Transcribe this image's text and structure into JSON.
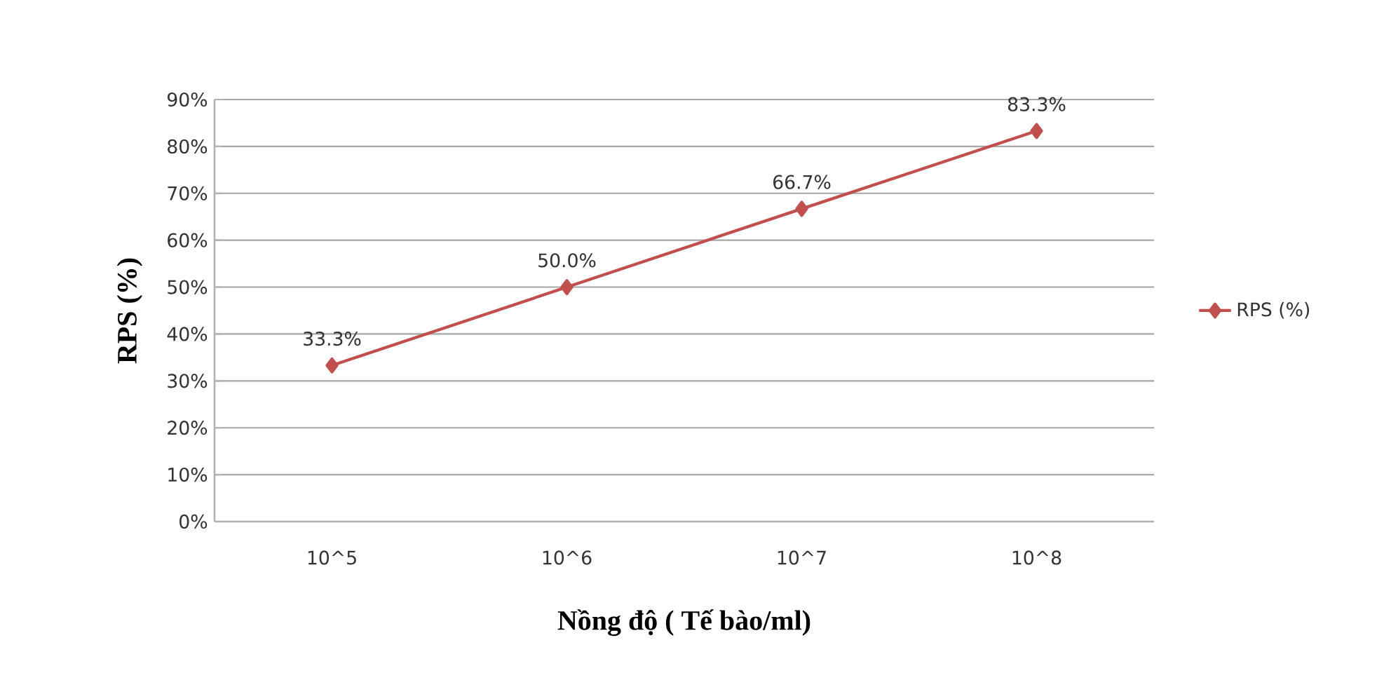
{
  "chart_data": {
    "type": "line",
    "xlabel": "Nồng độ ( Tế bào/ml)",
    "ylabel": "RPS (%)",
    "categories": [
      "10^5",
      "10^6",
      "10^7",
      "10^8"
    ],
    "series": [
      {
        "name": "RPS (%)",
        "color": "#c0504d",
        "values": [
          33.3,
          50.0,
          66.7,
          83.3
        ],
        "value_labels": [
          "33.3%",
          "50.0%",
          "66.7%",
          "83.3%"
        ]
      }
    ],
    "ylim": [
      0,
      90
    ],
    "yticks": [
      {
        "value": 0,
        "label": "0%"
      },
      {
        "value": 10,
        "label": "10%"
      },
      {
        "value": 20,
        "label": "20%"
      },
      {
        "value": 30,
        "label": "30%"
      },
      {
        "value": 40,
        "label": "40%"
      },
      {
        "value": 50,
        "label": "50%"
      },
      {
        "value": 60,
        "label": "60%"
      },
      {
        "value": 70,
        "label": "70%"
      },
      {
        "value": 80,
        "label": "80%"
      },
      {
        "value": 90,
        "label": "90%"
      }
    ],
    "grid": "y",
    "legend": "right",
    "marker": "diamond",
    "line_style": "solid"
  }
}
